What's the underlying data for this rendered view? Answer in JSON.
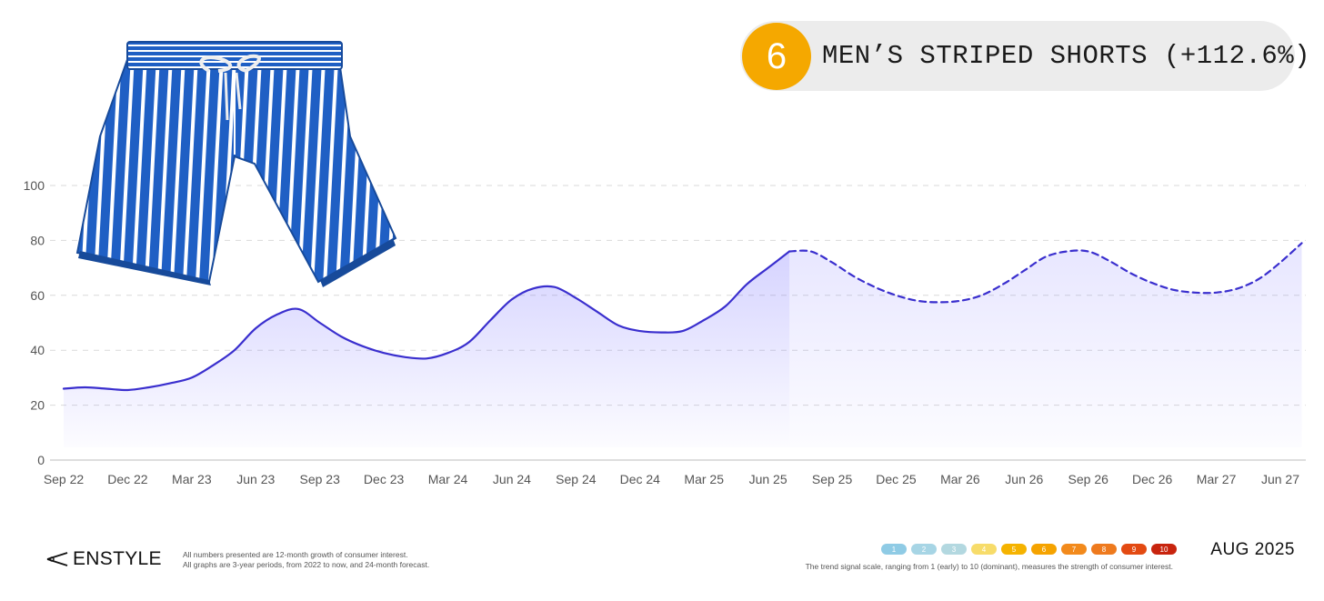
{
  "trend": {
    "rank": "6",
    "title": "MEN’S STRIPED SHORTS (+112.6%)"
  },
  "product_image": {
    "icon": "striped-swim-shorts-image"
  },
  "brand": {
    "name": "ENSTYLE",
    "icon": "scissors-mark-icon"
  },
  "footnote": {
    "line1": "All numbers presented are 12-month growth of consumer interest.",
    "line2": "All graphs are 3-year periods, from 2022 to now, and 24-month forecast."
  },
  "signal_scale": {
    "caption": "The trend signal scale, ranging from 1 (early) to 10 (dominant), measures the strength of consumer interest.",
    "levels": [
      {
        "label": "1",
        "color": "#8fcbe5"
      },
      {
        "label": "2",
        "color": "#a7d5e5"
      },
      {
        "label": "3",
        "color": "#b3d8e0"
      },
      {
        "label": "4",
        "color": "#f7dc6a"
      },
      {
        "label": "5",
        "color": "#f5b300"
      },
      {
        "label": "6",
        "color": "#f5a300"
      },
      {
        "label": "7",
        "color": "#f28a1c"
      },
      {
        "label": "8",
        "color": "#ee7a1e"
      },
      {
        "label": "9",
        "color": "#e34a12"
      },
      {
        "label": "10",
        "color": "#c8240e"
      }
    ]
  },
  "report_date": "AUG 2025",
  "colors": {
    "line": "#3a2fce",
    "fill": "#6b63ff",
    "rank_badge": "#f5a800",
    "title_pill": "#ececec"
  },
  "chart_data": {
    "type": "line",
    "x_ticks": [
      "Sep 22",
      "Dec 22",
      "Mar 23",
      "Jun 23",
      "Sep 23",
      "Dec 23",
      "Mar 24",
      "Jun 24",
      "Sep 24",
      "Dec 24",
      "Mar 25",
      "Jun 25",
      "Sep 25",
      "Dec 25",
      "Mar 26",
      "Jun 26",
      "Sep 26",
      "Dec 26",
      "Mar 27",
      "Jun 27"
    ],
    "y_ticks": [
      0,
      20,
      40,
      60,
      80,
      100
    ],
    "ylim": [
      0,
      100
    ],
    "grid": "horizontal dashed",
    "series": [
      {
        "style": "solid",
        "x": [
          "Sep 22",
          "Oct 22",
          "Nov 22",
          "Dec 22",
          "Jan 23",
          "Feb 23",
          "Mar 23",
          "Apr 23",
          "May 23",
          "Jun 23",
          "Jul 23",
          "Aug 23",
          "Sep 23",
          "Oct 23",
          "Nov 23",
          "Dec 23",
          "Jan 24",
          "Feb 24",
          "Mar 24",
          "Apr 24",
          "May 24",
          "Jun 24",
          "Jul 24",
          "Aug 24",
          "Sep 24",
          "Oct 24",
          "Nov 24",
          "Dec 24",
          "Jan 25",
          "Feb 25",
          "Mar 25",
          "Apr 25",
          "May 25",
          "Jun 25",
          "Jul 25"
        ],
        "values": [
          26,
          26.5,
          26,
          25.5,
          26.5,
          28,
          30,
          34.5,
          40,
          48,
          53,
          55,
          50,
          45,
          41.5,
          39,
          37.5,
          37,
          39,
          43,
          51,
          58.5,
          62.5,
          63,
          59,
          54,
          49,
          47,
          46.5,
          47,
          51,
          56,
          64,
          70,
          76
        ]
      },
      {
        "style": "dashed",
        "x": [
          "Jul 25",
          "Aug 25",
          "Sep 25",
          "Oct 25",
          "Nov 25",
          "Dec 25",
          "Jan 26",
          "Feb 26",
          "Mar 26",
          "Apr 26",
          "May 26",
          "Jun 26",
          "Jul 26",
          "Aug 26",
          "Sep 26",
          "Oct 26",
          "Nov 26",
          "Dec 26",
          "Jan 27",
          "Feb 27",
          "Mar 27",
          "Apr 27",
          "May 27",
          "Jun 27",
          "Jul 27"
        ],
        "values": [
          76,
          76,
          72,
          67,
          63,
          60,
          58,
          57.5,
          58,
          60,
          64,
          69,
          74,
          76,
          76,
          72.5,
          68,
          64.5,
          62,
          61,
          61,
          62.5,
          66,
          72,
          79
        ]
      }
    ]
  }
}
